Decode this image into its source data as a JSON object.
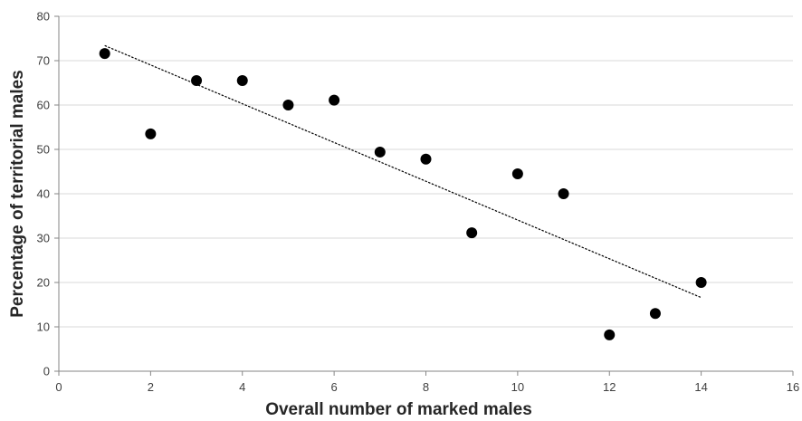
{
  "chart_data": {
    "type": "scatter",
    "xlabel": "Overall number of marked males",
    "ylabel": "Percentage of territorial males",
    "xlim": [
      0,
      16
    ],
    "ylim": [
      0,
      80
    ],
    "xticks": [
      0,
      2,
      4,
      6,
      8,
      10,
      12,
      14,
      16
    ],
    "yticks": [
      0,
      10,
      20,
      30,
      40,
      50,
      60,
      70,
      80
    ],
    "grid": "horizontal",
    "legend": "none",
    "series": [
      {
        "x": [
          1,
          2,
          3,
          4,
          5,
          6,
          7,
          8,
          9,
          10,
          11,
          12,
          13,
          14
        ],
        "y": [
          71.6,
          53.5,
          65.5,
          65.5,
          60.0,
          61.1,
          49.4,
          47.8,
          31.2,
          44.5,
          40.0,
          8.2,
          13.0,
          20.0
        ]
      }
    ],
    "trendline": {
      "type": "linear",
      "x": [
        1,
        14
      ],
      "y": [
        73.4,
        16.6
      ]
    },
    "colors": {
      "point": "#000000",
      "gridline": "#d9d9d9",
      "axis": "#868686"
    }
  }
}
